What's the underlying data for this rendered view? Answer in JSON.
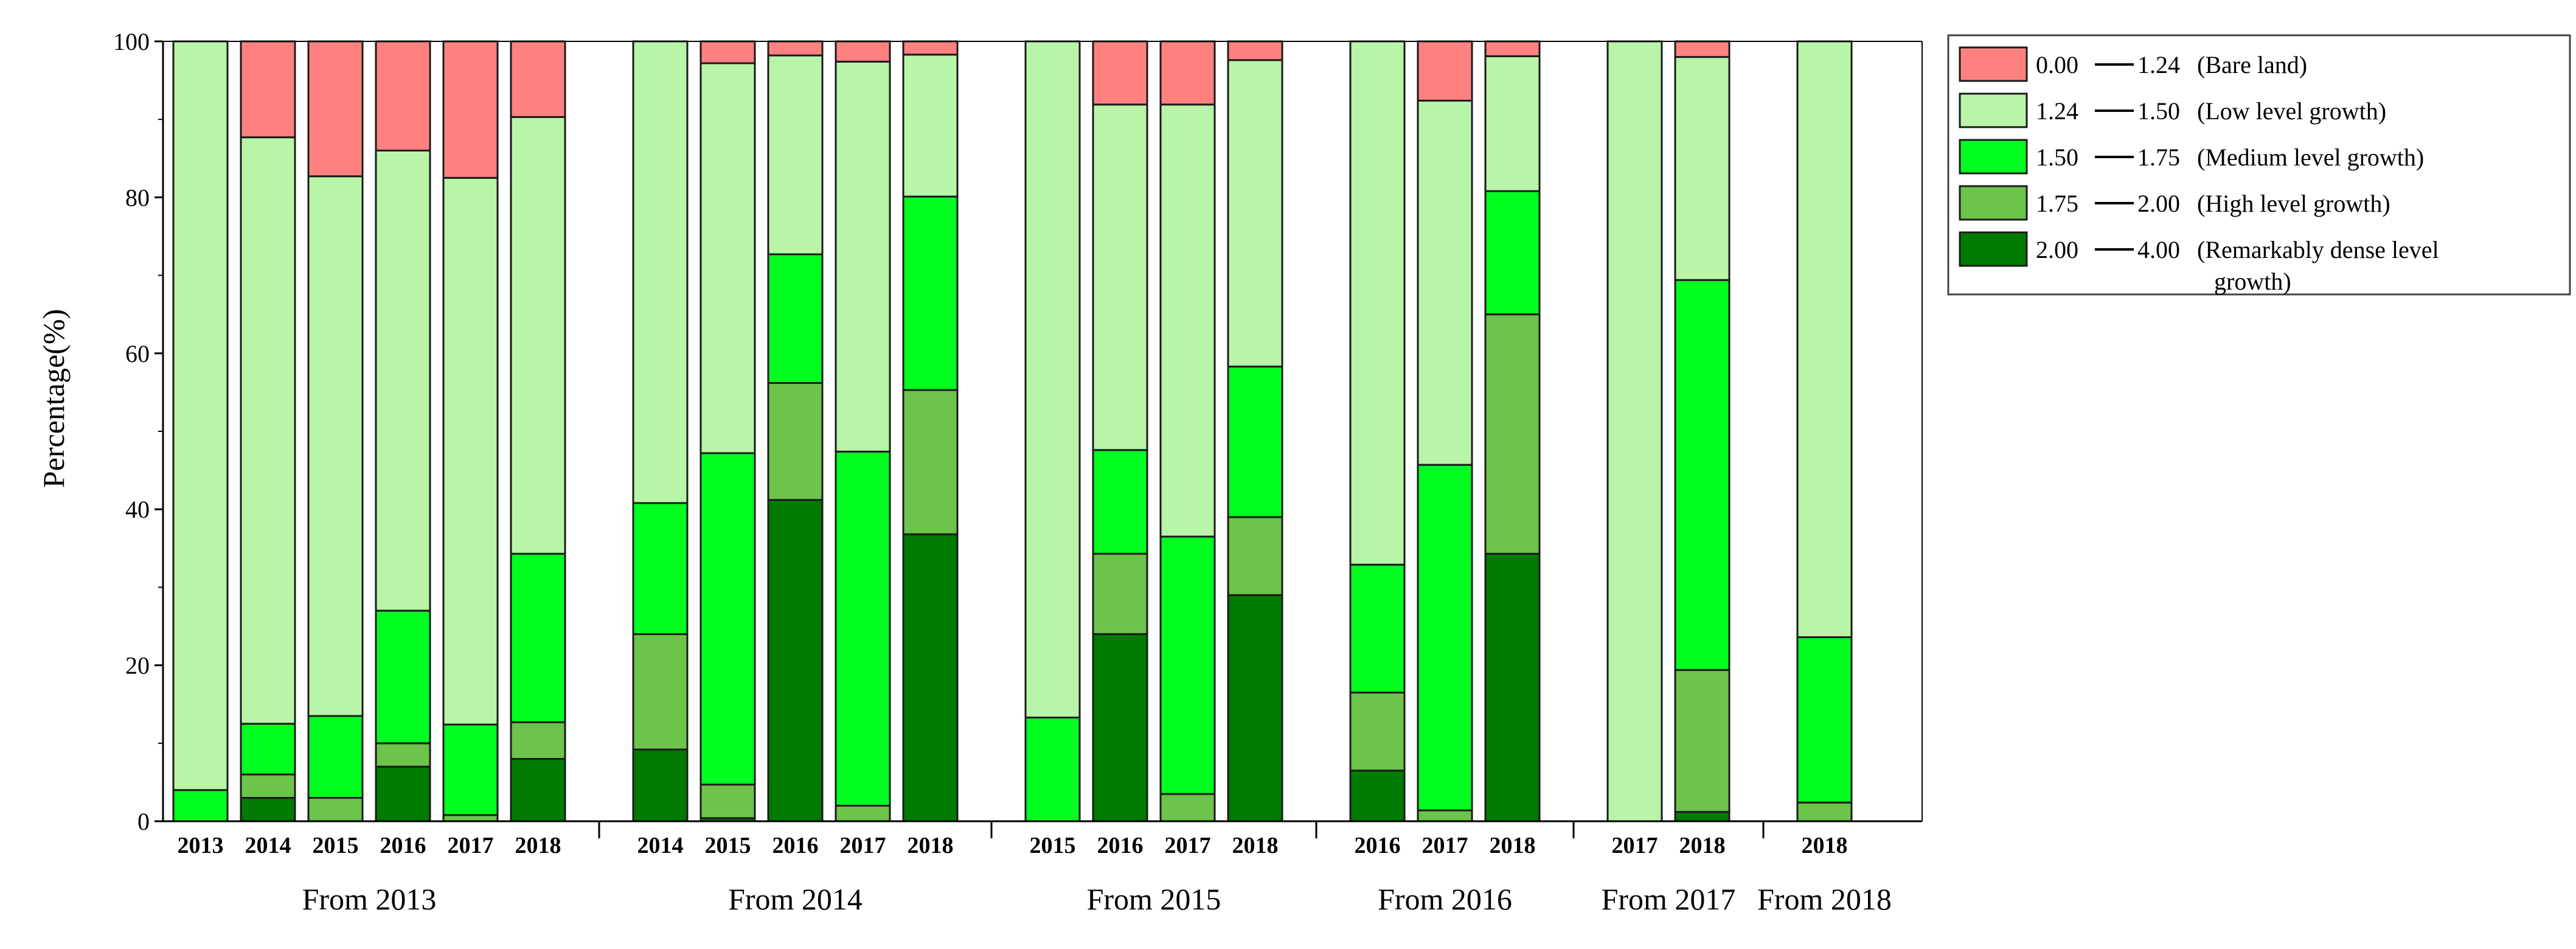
{
  "chart_data": {
    "type": "bar",
    "stacked": true,
    "ylabel": "Percentage(%)",
    "ylim": [
      0,
      100
    ],
    "yticks": [
      0,
      20,
      40,
      60,
      80,
      100
    ],
    "grid": false,
    "legend_position": "right",
    "series": [
      {
        "key": "remarkably",
        "range_from": "2.00",
        "range_to": "4.00",
        "desc": "(Remarkably dense level growth)",
        "color": "#007a00"
      },
      {
        "key": "high",
        "range_from": "1.75",
        "range_to": "2.00",
        "desc": "(High level growth)",
        "color": "#6cc44a"
      },
      {
        "key": "medium",
        "range_from": "1.50",
        "range_to": "1.75",
        "desc": "(Medium level growth)",
        "color": "#00ff21"
      },
      {
        "key": "low",
        "range_from": "1.24",
        "range_to": "1.50",
        "desc": "(Low level growth)",
        "color": "#b8f5a8"
      },
      {
        "key": "bare",
        "range_from": "0.00",
        "range_to": "1.24",
        "desc": "(Bare land)",
        "color": "#fe8180"
      }
    ],
    "legend_order": [
      "bare",
      "low",
      "medium",
      "high",
      "remarkably"
    ],
    "groups": [
      {
        "label": "From 2013",
        "bars": [
          {
            "label": "2013",
            "values": [
              0,
              0,
              4,
              96,
              0
            ]
          },
          {
            "label": "2014",
            "values": [
              3,
              3,
              6.5,
              75.2,
              12.3
            ]
          },
          {
            "label": "2015",
            "values": [
              0,
              3,
              10.5,
              69.2,
              17.3
            ]
          },
          {
            "label": "2016",
            "values": [
              7,
              3,
              17,
              59,
              14
            ]
          },
          {
            "label": "2017",
            "values": [
              0,
              0.8,
              11.6,
              70.1,
              17.5
            ]
          },
          {
            "label": "2018",
            "values": [
              8,
              4.7,
              21.6,
              56,
              9.7
            ]
          }
        ]
      },
      {
        "label": "From 2014",
        "bars": [
          {
            "label": "2014",
            "values": [
              9.2,
              14.8,
              16.8,
              59.2,
              0
            ]
          },
          {
            "label": "2015",
            "values": [
              0.4,
              4.3,
              42.5,
              50,
              2.8
            ]
          },
          {
            "label": "2016",
            "values": [
              41.2,
              15,
              16.5,
              25.5,
              1.8
            ]
          },
          {
            "label": "2017",
            "values": [
              0,
              2,
              45.4,
              50,
              2.6
            ]
          },
          {
            "label": "2018",
            "values": [
              36.8,
              18.5,
              24.8,
              18.2,
              1.7
            ]
          }
        ]
      },
      {
        "label": "From 2015",
        "bars": [
          {
            "label": "2015",
            "values": [
              0,
              0,
              13.3,
              86.7,
              0
            ]
          },
          {
            "label": "2016",
            "values": [
              24,
              10.3,
              13.3,
              44.3,
              8.1
            ]
          },
          {
            "label": "2017",
            "values": [
              0,
              3.5,
              33,
              55.4,
              8.1
            ]
          },
          {
            "label": "2018",
            "values": [
              29,
              10,
              19.3,
              39.3,
              2.4
            ]
          }
        ]
      },
      {
        "label": "From 2016",
        "bars": [
          {
            "label": "2016",
            "values": [
              6.5,
              10,
              16.4,
              67.1,
              0
            ]
          },
          {
            "label": "2017",
            "values": [
              0,
              1.4,
              44.3,
              46.7,
              7.6
            ]
          },
          {
            "label": "2018",
            "values": [
              34.3,
              30.7,
              15.8,
              17.3,
              1.9
            ]
          }
        ]
      },
      {
        "label": "From 2017",
        "bars": [
          {
            "label": "2017",
            "values": [
              0,
              0,
              0,
              100,
              0
            ]
          },
          {
            "label": "2018",
            "values": [
              1.2,
              18.2,
              50,
              28.6,
              2
            ]
          }
        ]
      },
      {
        "label": "From 2018",
        "bars": [
          {
            "label": "2018",
            "values": [
              0,
              2.4,
              21.2,
              76.4,
              0
            ]
          }
        ]
      }
    ]
  }
}
